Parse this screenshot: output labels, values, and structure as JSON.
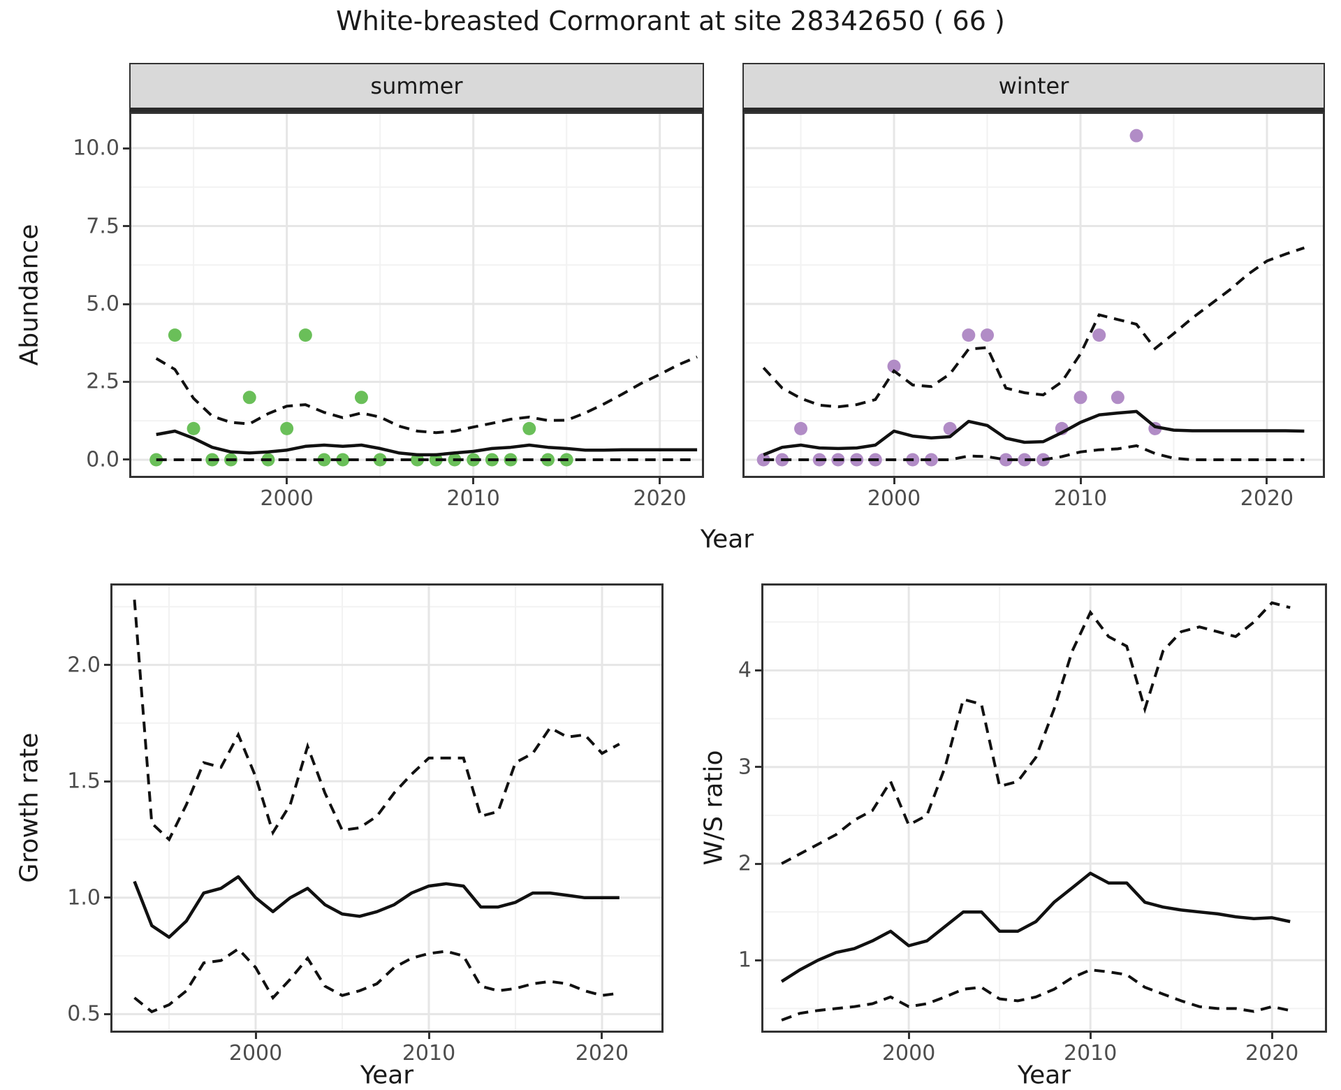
{
  "title": "White-breasted Cormorant at site 28342650 ( 66 )",
  "colors": {
    "summer_points": "#6abf59",
    "winter_points": "#b18cc6",
    "fit_line": "#111111",
    "strip_bg": "#d9d9d9",
    "grid_major": "#e6e6e6",
    "grid_minor": "#f2f2f2",
    "panel_border": "#333333",
    "tick_text": "#4d4d4d",
    "title_text": "#1a1a1a"
  },
  "chart_data": [
    {
      "id": "abundance-summer",
      "type": "scatter",
      "facet_label": "summer",
      "xlabel": "Year",
      "ylabel": "Abundance",
      "legend": "none",
      "grid": true,
      "y_axis": true,
      "xlim": [
        1991.55,
        2022.37
      ],
      "ylim": [
        -0.583,
        11.166
      ],
      "x_ticks": [
        {
          "v": 2000,
          "label": "2000"
        },
        {
          "v": 2010,
          "label": "2010"
        },
        {
          "v": 2020,
          "label": "2020"
        }
      ],
      "y_ticks": [
        {
          "v": 0,
          "label": "0.0"
        },
        {
          "v": 2.5,
          "label": "2.5"
        },
        {
          "v": 5,
          "label": "5.0"
        },
        {
          "v": 7.5,
          "label": "7.5"
        },
        {
          "v": 10,
          "label": "10.0"
        }
      ],
      "x_minor": [
        1995,
        2005,
        2015
      ],
      "y_minor": [
        1.25,
        3.75,
        6.25,
        8.75
      ],
      "point_color": "#6abf59",
      "points": {
        "years": [
          1993,
          1994,
          1995,
          1996,
          1997,
          1998,
          1999,
          2000,
          2001,
          2002,
          2003,
          2004,
          2005,
          2007,
          2008,
          2009,
          2010,
          2011,
          2012,
          2013,
          2014,
          2015
        ],
        "values": [
          0,
          4,
          1,
          0,
          0,
          2,
          0,
          1,
          4,
          0,
          0,
          2,
          0,
          0,
          0,
          0,
          0,
          0,
          0,
          1,
          0,
          0
        ]
      },
      "fit_years": [
        1993,
        1994,
        1995,
        1996,
        1997,
        1998,
        1999,
        2000,
        2001,
        2002,
        2003,
        2004,
        2005,
        2006,
        2007,
        2008,
        2009,
        2010,
        2011,
        2012,
        2013,
        2014,
        2015,
        2016,
        2017,
        2018,
        2019,
        2020,
        2021,
        2022
      ],
      "fit_median": [
        0.81,
        0.92,
        0.69,
        0.4,
        0.25,
        0.22,
        0.25,
        0.31,
        0.43,
        0.47,
        0.43,
        0.47,
        0.36,
        0.22,
        0.16,
        0.16,
        0.22,
        0.27,
        0.36,
        0.4,
        0.47,
        0.4,
        0.36,
        0.31,
        0.31,
        0.32,
        0.32,
        0.32,
        0.32,
        0.32
      ],
      "fit_upper": [
        3.25,
        2.9,
        1.97,
        1.4,
        1.2,
        1.15,
        1.48,
        1.72,
        1.77,
        1.52,
        1.35,
        1.5,
        1.37,
        1.08,
        0.92,
        0.87,
        0.92,
        1.05,
        1.17,
        1.3,
        1.37,
        1.26,
        1.27,
        1.5,
        1.79,
        2.11,
        2.45,
        2.74,
        3.05,
        3.3
      ],
      "fit_lower": [
        0,
        0,
        0,
        0,
        0,
        0,
        0,
        0,
        0,
        0,
        0,
        0,
        0,
        0,
        0,
        0,
        0,
        0,
        0,
        0,
        0,
        0,
        0,
        0,
        0,
        0,
        0,
        0,
        0,
        0
      ]
    },
    {
      "id": "abundance-winter",
      "type": "scatter",
      "facet_label": "winter",
      "xlabel": "Year",
      "ylabel": "Abundance",
      "legend": "none",
      "grid": true,
      "y_axis": false,
      "xlim": [
        1991.87,
        2023.11
      ],
      "ylim": [
        -0.583,
        11.166
      ],
      "x_ticks": [
        {
          "v": 2000,
          "label": "2000"
        },
        {
          "v": 2010,
          "label": "2010"
        },
        {
          "v": 2020,
          "label": "2020"
        }
      ],
      "y_ticks": [
        {
          "v": 0,
          "label": "0.0"
        },
        {
          "v": 2.5,
          "label": "2.5"
        },
        {
          "v": 5,
          "label": "5.0"
        },
        {
          "v": 7.5,
          "label": "7.5"
        },
        {
          "v": 10,
          "label": "10.0"
        }
      ],
      "x_minor": [
        1995,
        2005,
        2015
      ],
      "y_minor": [
        1.25,
        3.75,
        6.25,
        8.75
      ],
      "point_color": "#b18cc6",
      "points": {
        "years": [
          1993,
          1994,
          1995,
          1996,
          1997,
          1998,
          1999,
          2000,
          2001,
          2002,
          2003,
          2004,
          2005,
          2006,
          2007,
          2008,
          2009,
          2010,
          2011,
          2012,
          2013,
          2014
        ],
        "values": [
          0,
          0,
          1,
          0,
          0,
          0,
          0,
          3,
          0,
          0,
          1,
          4,
          4,
          0,
          0,
          0,
          1,
          2,
          4,
          2,
          10.4,
          1
        ]
      },
      "fit_years": [
        1993,
        1994,
        1995,
        1996,
        1997,
        1998,
        1999,
        2000,
        2001,
        2002,
        2003,
        2004,
        2005,
        2006,
        2007,
        2008,
        2009,
        2010,
        2011,
        2012,
        2013,
        2014,
        2015,
        2016,
        2017,
        2018,
        2019,
        2020,
        2021,
        2022
      ],
      "fit_median": [
        0.16,
        0.4,
        0.47,
        0.38,
        0.36,
        0.38,
        0.47,
        0.92,
        0.76,
        0.7,
        0.74,
        1.23,
        1.1,
        0.69,
        0.56,
        0.58,
        0.87,
        1.2,
        1.44,
        1.5,
        1.55,
        1.06,
        0.95,
        0.93,
        0.93,
        0.93,
        0.93,
        0.93,
        0.93,
        0.92
      ],
      "fit_upper": [
        2.95,
        2.3,
        1.97,
        1.75,
        1.7,
        1.77,
        1.93,
        2.85,
        2.4,
        2.35,
        2.75,
        3.55,
        3.6,
        2.3,
        2.15,
        2.08,
        2.5,
        3.4,
        4.65,
        4.5,
        4.35,
        3.57,
        4.05,
        4.55,
        5.0,
        5.45,
        5.96,
        6.38,
        6.6,
        6.8
      ],
      "fit_lower": [
        0,
        0,
        0,
        0,
        0,
        0,
        0,
        0,
        0,
        0,
        0,
        0.12,
        0.1,
        0,
        0,
        0,
        0.1,
        0.25,
        0.32,
        0.35,
        0.45,
        0.2,
        0.05,
        0,
        0,
        0,
        0,
        0,
        0,
        0
      ]
    },
    {
      "id": "growth-rate",
      "type": "line",
      "facet_label": "",
      "xlabel": "Year",
      "ylabel": "Growth rate",
      "legend": "none",
      "grid": true,
      "y_axis": true,
      "xlim": [
        1991.61,
        2023.55
      ],
      "ylim": [
        0.42,
        2.35
      ],
      "x_ticks": [
        {
          "v": 2000,
          "label": "2000"
        },
        {
          "v": 2010,
          "label": "2010"
        },
        {
          "v": 2020,
          "label": "2020"
        }
      ],
      "y_ticks": [
        {
          "v": 0.5,
          "label": "0.5"
        },
        {
          "v": 1.0,
          "label": "1.0"
        },
        {
          "v": 1.5,
          "label": "1.5"
        },
        {
          "v": 2.0,
          "label": "2.0"
        }
      ],
      "x_minor": [
        1995,
        2005,
        2015
      ],
      "y_minor": [
        0.75,
        1.25,
        1.75,
        2.25
      ],
      "point_color": "none",
      "points": {
        "years": [],
        "values": []
      },
      "fit_years": [
        1993,
        1994,
        1995,
        1996,
        1997,
        1998,
        1999,
        2000,
        2001,
        2002,
        2003,
        2004,
        2005,
        2006,
        2007,
        2008,
        2009,
        2010,
        2011,
        2012,
        2013,
        2014,
        2015,
        2016,
        2017,
        2018,
        2019,
        2020,
        2021
      ],
      "fit_median": [
        1.07,
        0.88,
        0.83,
        0.9,
        1.02,
        1.04,
        1.09,
        1.0,
        0.94,
        1.0,
        1.04,
        0.97,
        0.93,
        0.92,
        0.94,
        0.97,
        1.02,
        1.05,
        1.06,
        1.05,
        0.96,
        0.96,
        0.98,
        1.02,
        1.02,
        1.01,
        1.0,
        1.0,
        1.0
      ],
      "fit_upper": [
        2.28,
        1.32,
        1.25,
        1.4,
        1.58,
        1.56,
        1.7,
        1.52,
        1.28,
        1.4,
        1.65,
        1.45,
        1.29,
        1.3,
        1.35,
        1.45,
        1.53,
        1.6,
        1.6,
        1.6,
        1.35,
        1.37,
        1.58,
        1.62,
        1.73,
        1.69,
        1.7,
        1.62,
        1.66
      ],
      "fit_lower": [
        0.57,
        0.51,
        0.54,
        0.6,
        0.72,
        0.73,
        0.78,
        0.7,
        0.57,
        0.65,
        0.74,
        0.62,
        0.58,
        0.6,
        0.63,
        0.7,
        0.74,
        0.76,
        0.77,
        0.75,
        0.62,
        0.6,
        0.61,
        0.63,
        0.64,
        0.63,
        0.6,
        0.58,
        0.59
      ]
    },
    {
      "id": "ws-ratio",
      "type": "line",
      "facet_label": "",
      "xlabel": "Year",
      "ylabel": "W/S ratio",
      "legend": "none",
      "grid": true,
      "y_axis": true,
      "xlim": [
        1991.88,
        2023.03
      ],
      "ylim": [
        0.25,
        4.9
      ],
      "x_ticks": [
        {
          "v": 2000,
          "label": "2000"
        },
        {
          "v": 2010,
          "label": "2010"
        },
        {
          "v": 2020,
          "label": "2020"
        }
      ],
      "y_ticks": [
        {
          "v": 1,
          "label": "1"
        },
        {
          "v": 2,
          "label": "2"
        },
        {
          "v": 3,
          "label": "3"
        },
        {
          "v": 4,
          "label": "4"
        }
      ],
      "x_minor": [
        1995,
        2005,
        2015
      ],
      "y_minor": [
        0.5,
        1.5,
        2.5,
        3.5,
        4.5
      ],
      "point_color": "none",
      "points": {
        "years": [],
        "values": []
      },
      "fit_years": [
        1993,
        1994,
        1995,
        1996,
        1997,
        1998,
        1999,
        2000,
        2001,
        2002,
        2003,
        2004,
        2005,
        2006,
        2007,
        2008,
        2009,
        2010,
        2011,
        2012,
        2013,
        2014,
        2015,
        2016,
        2017,
        2018,
        2019,
        2020,
        2021
      ],
      "fit_median": [
        0.78,
        0.9,
        1.0,
        1.08,
        1.12,
        1.2,
        1.3,
        1.15,
        1.2,
        1.35,
        1.5,
        1.5,
        1.3,
        1.3,
        1.4,
        1.6,
        1.75,
        1.9,
        1.8,
        1.8,
        1.6,
        1.55,
        1.52,
        1.5,
        1.48,
        1.45,
        1.43,
        1.44,
        1.4
      ],
      "fit_upper": [
        2.0,
        2.1,
        2.2,
        2.3,
        2.45,
        2.55,
        2.85,
        2.4,
        2.5,
        3.0,
        3.7,
        3.65,
        2.8,
        2.85,
        3.1,
        3.6,
        4.2,
        4.6,
        4.35,
        4.25,
        3.6,
        4.2,
        4.4,
        4.45,
        4.4,
        4.35,
        4.5,
        4.7,
        4.65
      ],
      "fit_lower": [
        0.38,
        0.45,
        0.48,
        0.5,
        0.52,
        0.55,
        0.62,
        0.52,
        0.55,
        0.62,
        0.7,
        0.72,
        0.6,
        0.58,
        0.62,
        0.7,
        0.82,
        0.9,
        0.88,
        0.85,
        0.72,
        0.65,
        0.58,
        0.52,
        0.5,
        0.5,
        0.47,
        0.52,
        0.48
      ]
    }
  ]
}
